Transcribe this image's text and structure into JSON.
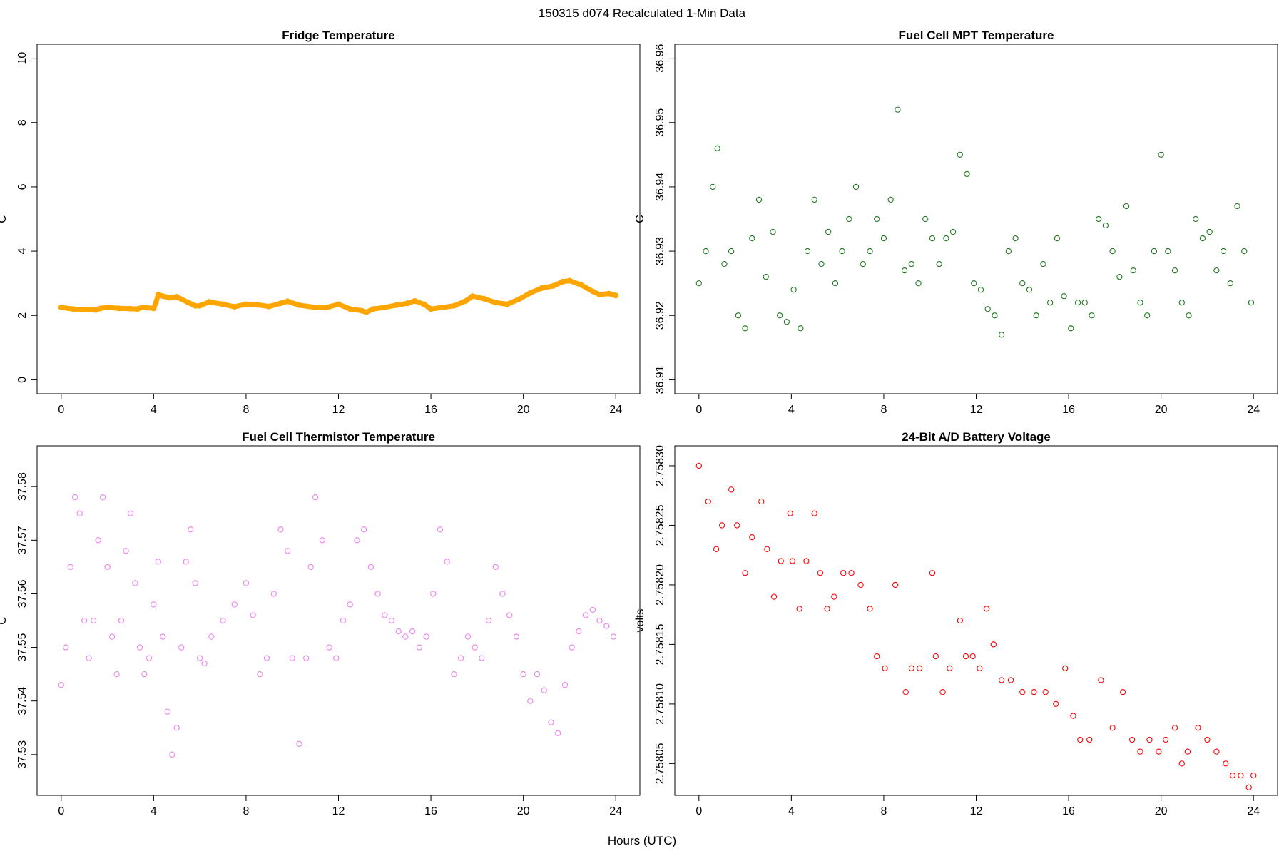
{
  "figure": {
    "suptitle": "150315    d074    Recalculated 1-Min Data",
    "xlabel": "Hours (UTC)"
  },
  "chart_data": [
    {
      "type": "line",
      "title": "Fridge Temperature",
      "xlabel": "",
      "ylabel": "C",
      "color": "#ffa500",
      "xlim": [
        0,
        24
      ],
      "ylim": [
        0,
        10
      ],
      "xticks": [
        0,
        4,
        8,
        12,
        16,
        20,
        24
      ],
      "yticks": [
        0,
        2,
        4,
        6,
        8,
        10
      ],
      "ytick_labels": [
        "0",
        "2",
        "4",
        "6",
        "8",
        "10"
      ],
      "x": [
        0,
        0.5,
        1,
        1.5,
        1.7,
        2,
        2.5,
        3,
        3.3,
        3.5,
        4,
        4.1,
        4.2,
        4.4,
        4.7,
        5,
        5.5,
        5.8,
        6,
        6.4,
        7,
        7.5,
        8,
        8.5,
        9,
        9.5,
        9.8,
        10.3,
        11,
        11.5,
        12,
        12.5,
        13,
        13.2,
        13.5,
        14,
        14.5,
        15,
        15.3,
        15.7,
        16,
        16.5,
        17,
        17.5,
        17.8,
        18.3,
        18.8,
        19.3,
        19.8,
        20.3,
        20.8,
        21.3,
        21.7,
        22,
        22.5,
        23,
        23.3,
        23.7,
        24
      ],
      "values": [
        2.25,
        2.2,
        2.18,
        2.17,
        2.22,
        2.25,
        2.22,
        2.21,
        2.2,
        2.25,
        2.22,
        2.4,
        2.65,
        2.6,
        2.55,
        2.58,
        2.4,
        2.3,
        2.3,
        2.42,
        2.35,
        2.27,
        2.35,
        2.33,
        2.28,
        2.38,
        2.44,
        2.32,
        2.25,
        2.25,
        2.35,
        2.2,
        2.15,
        2.1,
        2.2,
        2.25,
        2.32,
        2.38,
        2.45,
        2.35,
        2.2,
        2.25,
        2.3,
        2.45,
        2.6,
        2.52,
        2.4,
        2.35,
        2.5,
        2.7,
        2.85,
        2.92,
        3.05,
        3.08,
        2.95,
        2.75,
        2.65,
        2.68,
        2.62
      ]
    },
    {
      "type": "scatter",
      "title": "Fuel Cell MPT Temperature",
      "xlabel": "",
      "ylabel": "C",
      "color": "#1e7a1e",
      "xlim": [
        0,
        24
      ],
      "ylim": [
        36.91,
        36.96
      ],
      "xticks": [
        0,
        4,
        8,
        12,
        16,
        20,
        24
      ],
      "yticks": [
        36.91,
        36.92,
        36.93,
        36.94,
        36.95,
        36.96
      ],
      "ytick_labels": [
        "36.91",
        "36.92",
        "36.93",
        "36.94",
        "36.95",
        "36.96"
      ],
      "x": [
        0,
        0.3,
        0.6,
        0.8,
        1.1,
        1.4,
        1.7,
        2,
        2.3,
        2.6,
        2.9,
        3.2,
        3.5,
        3.8,
        4.1,
        4.4,
        4.7,
        5,
        5.3,
        5.6,
        5.9,
        6.2,
        6.5,
        6.8,
        7.1,
        7.4,
        7.7,
        8,
        8.3,
        8.6,
        8.9,
        9.2,
        9.5,
        9.8,
        10.1,
        10.4,
        10.7,
        11,
        11.3,
        11.6,
        11.9,
        12.2,
        12.5,
        12.8,
        13.1,
        13.4,
        13.7,
        14,
        14.3,
        14.6,
        14.9,
        15.2,
        15.5,
        15.8,
        16.1,
        16.4,
        16.7,
        17,
        17.3,
        17.6,
        17.9,
        18.2,
        18.5,
        18.8,
        19.1,
        19.4,
        19.7,
        20,
        20.3,
        20.6,
        20.9,
        21.2,
        21.5,
        21.8,
        22.1,
        22.4,
        22.7,
        23,
        23.3,
        23.6,
        23.9
      ],
      "values": [
        36.925,
        36.93,
        36.94,
        36.946,
        36.928,
        36.93,
        36.92,
        36.918,
        36.932,
        36.938,
        36.926,
        36.933,
        36.92,
        36.919,
        36.924,
        36.918,
        36.93,
        36.938,
        36.928,
        36.933,
        36.925,
        36.93,
        36.935,
        36.94,
        36.928,
        36.93,
        36.935,
        36.932,
        36.938,
        36.952,
        36.927,
        36.928,
        36.925,
        36.935,
        36.932,
        36.928,
        36.932,
        36.933,
        36.945,
        36.942,
        36.925,
        36.924,
        36.921,
        36.92,
        36.917,
        36.93,
        36.932,
        36.925,
        36.924,
        36.92,
        36.928,
        36.922,
        36.932,
        36.923,
        36.918,
        36.922,
        36.922,
        36.92,
        36.935,
        36.934,
        36.93,
        36.926,
        36.937,
        36.927,
        36.922,
        36.92,
        36.93,
        36.945,
        36.93,
        36.927,
        36.922,
        36.92,
        36.935,
        36.932,
        36.933,
        36.927,
        36.93,
        36.925,
        36.937,
        36.93,
        36.922
      ]
    },
    {
      "type": "scatter",
      "title": "Fuel Cell Thermistor Temperature",
      "xlabel": "",
      "ylabel": "C",
      "color": "#ee82ee",
      "xlim": [
        0,
        24
      ],
      "ylim": [
        37.525,
        37.585
      ],
      "xticks": [
        0,
        4,
        8,
        12,
        16,
        20,
        24
      ],
      "yticks": [
        37.53,
        37.54,
        37.55,
        37.56,
        37.57,
        37.58
      ],
      "ytick_labels": [
        "37.53",
        "37.54",
        "37.55",
        "37.56",
        "37.57",
        "37.58"
      ],
      "x": [
        0,
        0.2,
        0.4,
        0.6,
        0.8,
        1,
        1.2,
        1.4,
        1.6,
        1.8,
        2,
        2.2,
        2.4,
        2.6,
        2.8,
        3,
        3.2,
        3.4,
        3.6,
        3.8,
        4,
        4.2,
        4.4,
        4.6,
        4.8,
        5,
        5.2,
        5.4,
        5.6,
        5.8,
        6,
        6.2,
        6.5,
        7,
        7.5,
        8,
        8.3,
        8.6,
        8.9,
        9.2,
        9.5,
        9.8,
        10,
        10.3,
        10.6,
        10.8,
        11,
        11.3,
        11.6,
        11.9,
        12.2,
        12.5,
        12.8,
        13.1,
        13.4,
        13.7,
        14,
        14.3,
        14.6,
        14.9,
        15.2,
        15.5,
        15.8,
        16.1,
        16.4,
        16.7,
        17,
        17.3,
        17.6,
        17.9,
        18.2,
        18.5,
        18.8,
        19.1,
        19.4,
        19.7,
        20,
        20.3,
        20.6,
        20.9,
        21.2,
        21.5,
        21.8,
        22.1,
        22.4,
        22.7,
        23,
        23.3,
        23.6,
        23.9
      ],
      "values": [
        37.543,
        37.55,
        37.565,
        37.578,
        37.575,
        37.555,
        37.548,
        37.555,
        37.57,
        37.578,
        37.565,
        37.552,
        37.545,
        37.555,
        37.568,
        37.575,
        37.562,
        37.55,
        37.545,
        37.548,
        37.558,
        37.566,
        37.552,
        37.538,
        37.53,
        37.535,
        37.55,
        37.566,
        37.572,
        37.562,
        37.548,
        37.547,
        37.552,
        37.555,
        37.558,
        37.562,
        37.556,
        37.545,
        37.548,
        37.56,
        37.572,
        37.568,
        37.548,
        37.532,
        37.548,
        37.565,
        37.578,
        37.57,
        37.55,
        37.548,
        37.555,
        37.558,
        37.57,
        37.572,
        37.565,
        37.56,
        37.556,
        37.555,
        37.553,
        37.552,
        37.553,
        37.55,
        37.552,
        37.56,
        37.572,
        37.566,
        37.545,
        37.548,
        37.552,
        37.55,
        37.548,
        37.555,
        37.565,
        37.56,
        37.556,
        37.552,
        37.545,
        37.54,
        37.545,
        37.542,
        37.536,
        37.534,
        37.543,
        37.55,
        37.553,
        37.556,
        37.557,
        37.555,
        37.554,
        37.552
      ]
    },
    {
      "type": "scatter",
      "title": "24-Bit A/D Battery Voltage",
      "xlabel": "",
      "ylabel": "volts",
      "color": "#ff0000",
      "xlim": [
        0,
        24
      ],
      "ylim": [
        2.758035,
        2.758305
      ],
      "xticks": [
        0,
        4,
        8,
        12,
        16,
        20,
        24
      ],
      "yticks": [
        2.75805,
        2.7581,
        2.75815,
        2.7582,
        2.75825,
        2.7583
      ],
      "ytick_labels": [
        "2.75805",
        "2.75810",
        "2.75815",
        "2.75820",
        "2.75825",
        "2.75830"
      ],
      "x": [
        0,
        0.4,
        0.75,
        1.0,
        1.4,
        1.65,
        2.0,
        2.3,
        2.7,
        2.95,
        3.25,
        3.55,
        3.95,
        4.05,
        4.35,
        4.65,
        5.0,
        5.25,
        5.55,
        5.85,
        6.25,
        6.6,
        7.0,
        7.4,
        7.7,
        8.05,
        8.5,
        8.95,
        9.2,
        9.55,
        10.1,
        10.25,
        10.55,
        10.85,
        11.3,
        11.55,
        11.85,
        12.15,
        12.45,
        12.75,
        13.1,
        13.5,
        14.0,
        14.5,
        15.0,
        15.45,
        15.85,
        16.2,
        16.5,
        16.9,
        17.4,
        17.9,
        18.35,
        18.75,
        19.1,
        19.5,
        19.9,
        20.2,
        20.6,
        20.9,
        21.15,
        21.6,
        22.0,
        22.4,
        22.8,
        23.1,
        23.45,
        23.8,
        24
      ],
      "values": [
        2.7583,
        2.75827,
        2.75823,
        2.75825,
        2.75828,
        2.75825,
        2.75821,
        2.75824,
        2.75827,
        2.75823,
        2.75819,
        2.75822,
        2.75826,
        2.75822,
        2.75818,
        2.75822,
        2.75826,
        2.75821,
        2.75818,
        2.75819,
        2.75821,
        2.75821,
        2.7582,
        2.75818,
        2.75814,
        2.75813,
        2.7582,
        2.75811,
        2.75813,
        2.75813,
        2.75821,
        2.75814,
        2.75811,
        2.75813,
        2.75817,
        2.75814,
        2.75814,
        2.75813,
        2.75818,
        2.75815,
        2.75812,
        2.75812,
        2.75811,
        2.75811,
        2.75811,
        2.7581,
        2.75813,
        2.75809,
        2.75807,
        2.75807,
        2.75812,
        2.75808,
        2.75811,
        2.75807,
        2.75806,
        2.75807,
        2.75806,
        2.75807,
        2.75808,
        2.75805,
        2.75806,
        2.75808,
        2.75807,
        2.75806,
        2.75805,
        2.75804,
        2.75804,
        2.75803,
        2.75804
      ]
    }
  ]
}
